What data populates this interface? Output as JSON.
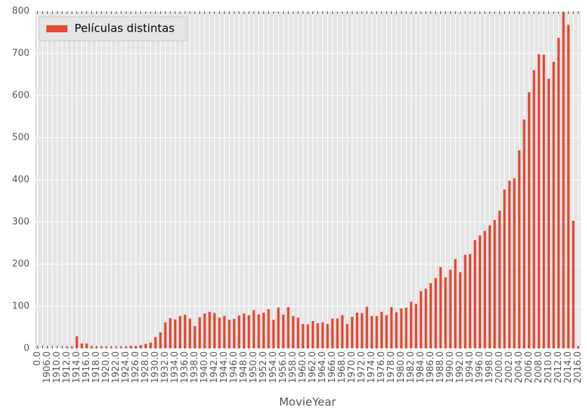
{
  "chart_data": {
    "type": "bar",
    "x_label": "MovieYear",
    "categories": [
      "0.0",
      null,
      "1906.0",
      null,
      "1910.0",
      null,
      "1912.0",
      null,
      "1914.0",
      null,
      "1916.0",
      null,
      "1918.0",
      null,
      "1920.0",
      null,
      "1922.0",
      null,
      "1924.0",
      null,
      "1926.0",
      null,
      "1928.0",
      null,
      "1930.0",
      null,
      "1932.0",
      null,
      "1934.0",
      null,
      "1936.0",
      null,
      "1938.0",
      null,
      "1940.0",
      null,
      "1942.0",
      null,
      "1944.0",
      null,
      "1946.0",
      null,
      "1948.0",
      null,
      "1950.0",
      null,
      "1952.0",
      null,
      "1954.0",
      null,
      "1956.0",
      null,
      "1958.0",
      null,
      "1960.0",
      null,
      "1962.0",
      null,
      "1964.0",
      null,
      "1966.0",
      null,
      "1968.0",
      null,
      "1970.0",
      null,
      "1972.0",
      null,
      "1974.0",
      null,
      "1976.0",
      null,
      "1978.0",
      null,
      "1980.0",
      null,
      "1982.0",
      null,
      "1984.0",
      null,
      "1986.0",
      null,
      "1988.0",
      null,
      "1990.0",
      null,
      "1992.0",
      null,
      "1994.0",
      null,
      "1996.0",
      null,
      "1998.0",
      null,
      "2000.0",
      null,
      "2002.0",
      null,
      "2004.0",
      null,
      "2006.0",
      null,
      "2008.0",
      null,
      "2010.0",
      null,
      "2012.0",
      null,
      "2014.0",
      null,
      "2016.0"
    ],
    "series": [
      {
        "name": "Películas distintas",
        "color": "#e24a33",
        "values": [
          2,
          0,
          1,
          0,
          0,
          1,
          2,
          3,
          29,
          12,
          12,
          4,
          3,
          3,
          2,
          2,
          2,
          2,
          3,
          6,
          5,
          8,
          11,
          14,
          27,
          38,
          62,
          72,
          69,
          77,
          80,
          71,
          53,
          74,
          83,
          87,
          84,
          73,
          77,
          68,
          70,
          78,
          83,
          79,
          91,
          81,
          85,
          93,
          68,
          97,
          80,
          98,
          77,
          73,
          58,
          57,
          65,
          60,
          62,
          58,
          71,
          71,
          79,
          58,
          75,
          85,
          84,
          99,
          77,
          77,
          87,
          79,
          98,
          86,
          95,
          97,
          111,
          106,
          136,
          142,
          155,
          167,
          193,
          169,
          187,
          212,
          181,
          222,
          224,
          257,
          268,
          279,
          292,
          305,
          327,
          377,
          398,
          404,
          470,
          543,
          608,
          660,
          698,
          697,
          640,
          680,
          737,
          798,
          768,
          303,
          4
        ]
      }
    ],
    "ylim": [
      0,
      800
    ],
    "yticks": [
      0,
      100,
      200,
      300,
      400,
      500,
      600,
      700,
      800
    ],
    "grid": true,
    "legend": "upper left"
  }
}
